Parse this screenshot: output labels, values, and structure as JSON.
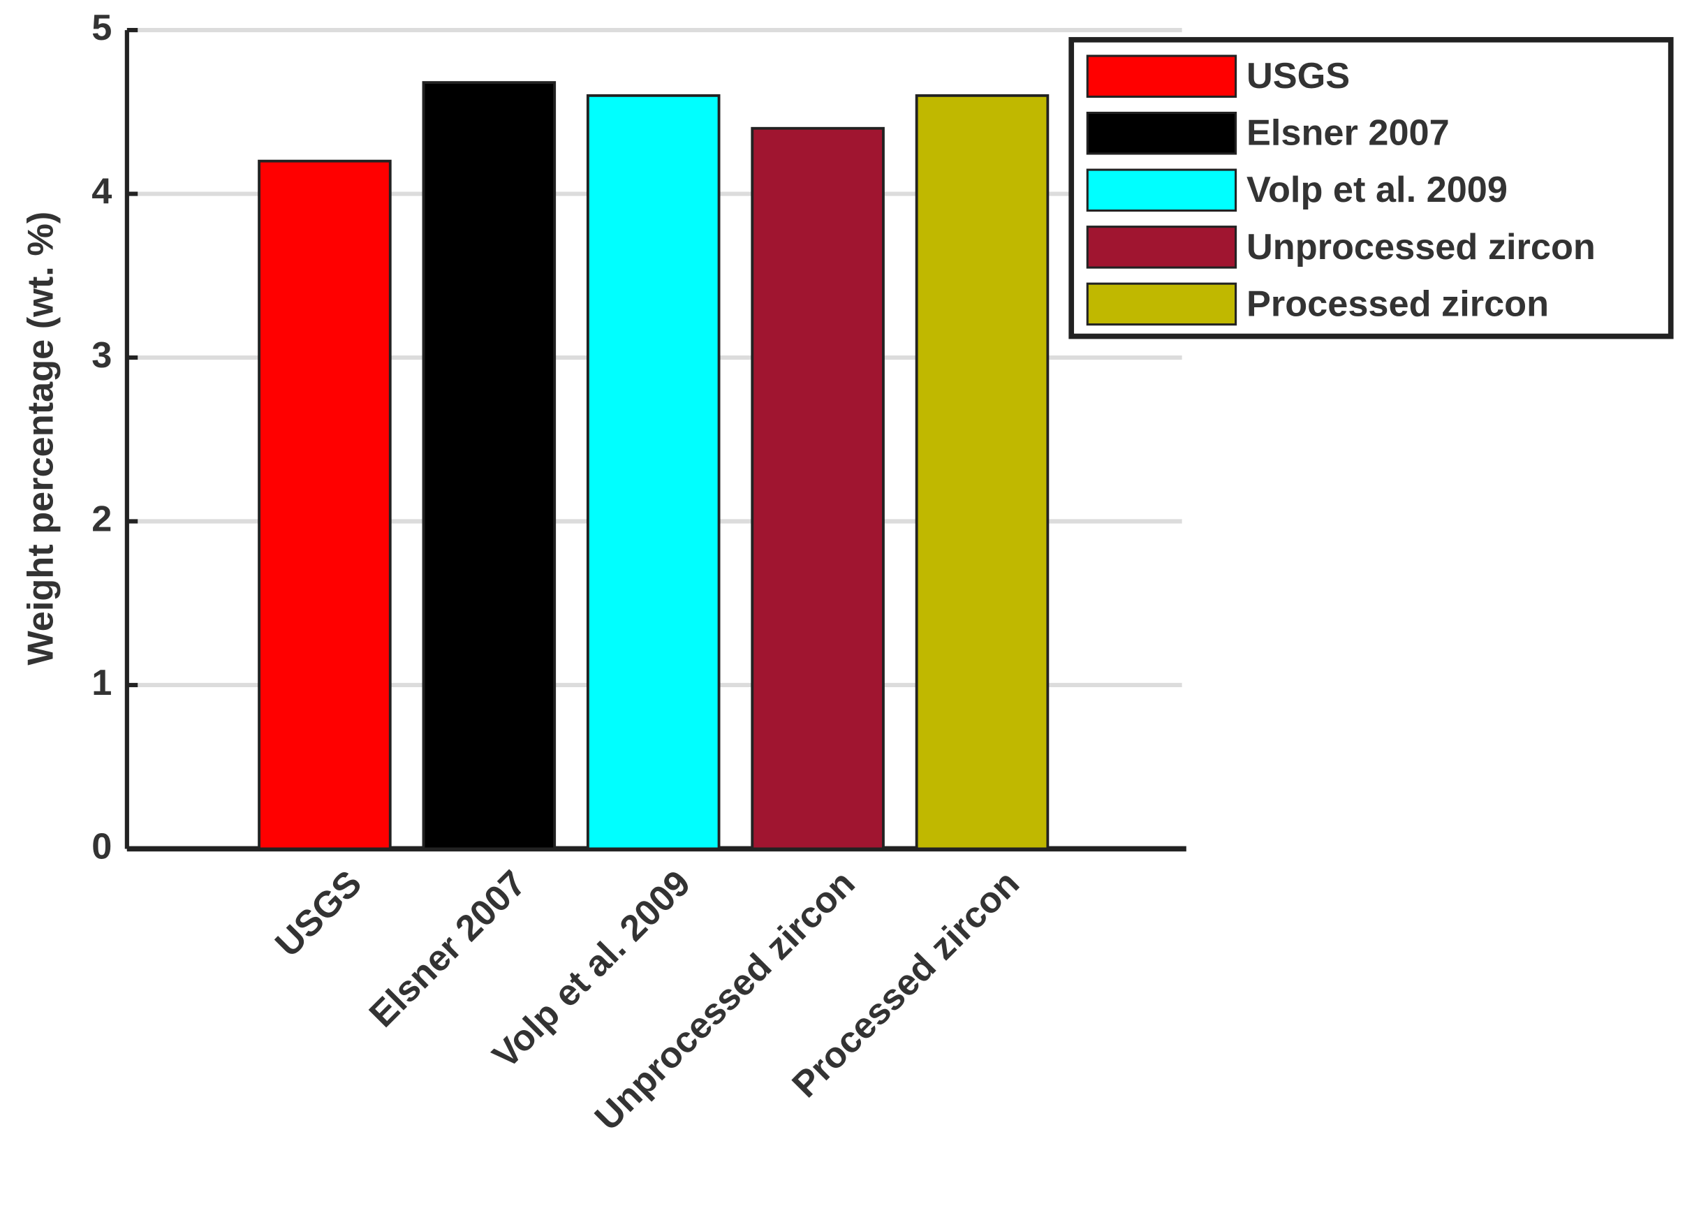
{
  "chart_data": {
    "type": "bar",
    "y_label": "Weight percentage (wt. %)",
    "categories": [
      "USGS",
      "Elsner 2007",
      "Volp et al. 2009",
      "Unprocessed zircon",
      "Processed zircon"
    ],
    "values": [
      4.2,
      4.68,
      4.6,
      4.4,
      4.6
    ],
    "colors": [
      "#ff0000",
      "#000000",
      "#00ffff",
      "#a01530",
      "#c0b800"
    ],
    "ylim": [
      0,
      5
    ],
    "yticks": [
      0,
      1,
      2,
      3,
      4,
      5
    ],
    "grid": true,
    "legend": "top-right"
  }
}
